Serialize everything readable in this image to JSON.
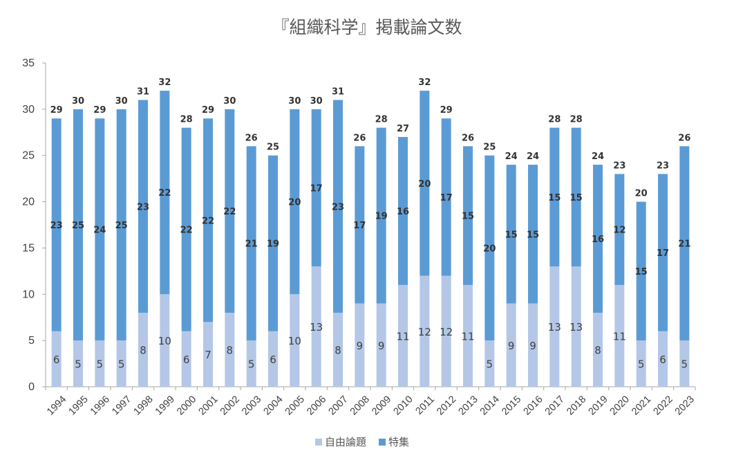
{
  "chart_data": {
    "type": "bar",
    "stacked": true,
    "title": "『組織科学』掲載論文数",
    "xlabel": "",
    "ylabel": "",
    "ylim": [
      0,
      35
    ],
    "yticks": [
      0,
      5,
      10,
      15,
      20,
      25,
      30,
      35
    ],
    "grid": false,
    "legend_position": "bottom",
    "categories": [
      "1994",
      "1995",
      "1996",
      "1997",
      "1998",
      "1999",
      "2000",
      "2001",
      "2002",
      "2003",
      "2004",
      "2005",
      "2006",
      "2007",
      "2008",
      "2009",
      "2010",
      "2011",
      "2012",
      "2013",
      "2014",
      "2015",
      "2016",
      "2017",
      "2018",
      "2019",
      "2020",
      "2021",
      "2022",
      "2023"
    ],
    "series": [
      {
        "name": "自由論題",
        "color": "#b4c7e7",
        "values": [
          6,
          5,
          5,
          5,
          8,
          10,
          6,
          7,
          8,
          5,
          6,
          10,
          13,
          8,
          9,
          9,
          11,
          12,
          12,
          11,
          5,
          9,
          9,
          13,
          13,
          8,
          11,
          5,
          6,
          5
        ]
      },
      {
        "name": "特集",
        "color": "#5b9bd5",
        "values": [
          23,
          25,
          24,
          25,
          23,
          22,
          22,
          22,
          22,
          21,
          19,
          20,
          17,
          23,
          17,
          19,
          16,
          20,
          17,
          15,
          20,
          15,
          15,
          15,
          15,
          16,
          12,
          15,
          17,
          21
        ]
      }
    ],
    "totals": [
      29,
      30,
      29,
      30,
      31,
      32,
      28,
      29,
      30,
      26,
      25,
      30,
      30,
      31,
      26,
      28,
      27,
      32,
      29,
      26,
      25,
      24,
      24,
      28,
      28,
      24,
      23,
      20,
      23,
      26
    ]
  }
}
